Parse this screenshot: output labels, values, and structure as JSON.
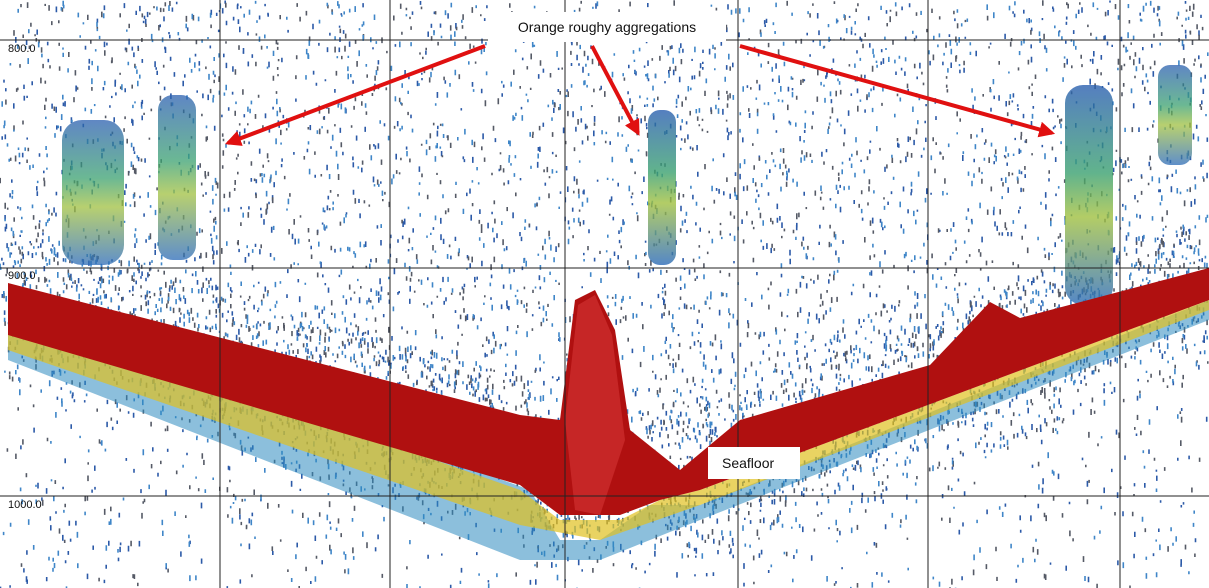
{
  "depth_labels": [
    "800.0",
    "900.0",
    "1000.0"
  ],
  "annotations": {
    "aggregations": "Orange roughy aggregations",
    "seafloor": "Seafloor"
  }
}
